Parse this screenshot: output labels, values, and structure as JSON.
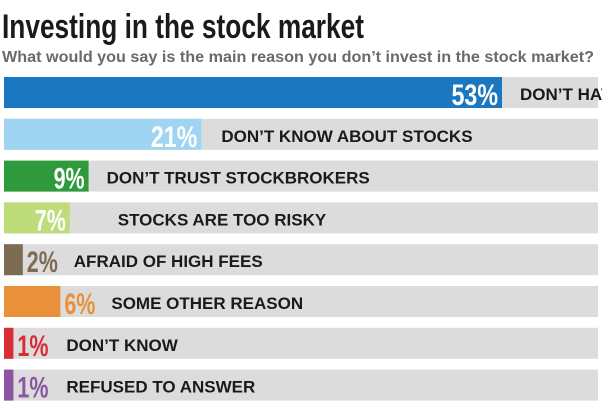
{
  "chart_data": {
    "type": "bar",
    "title": "Investing in the stock market",
    "subtitle": "What would you say is the main reason  you don’t invest in the stock market?",
    "categories": [
      "DON’T HAVE THE MONEY",
      "DON’T KNOW ABOUT STOCKS",
      "DON’T TRUST STOCKBROKERS",
      "STOCKS ARE TOO RISKY",
      "AFRAID OF HIGH FEES",
      "SOME OTHER REASON",
      "DON’T KNOW",
      "REFUSED TO ANSWER"
    ],
    "values": [
      53,
      21,
      9,
      7,
      2,
      6,
      1,
      1
    ],
    "value_labels": [
      "53%",
      "21%",
      "9%",
      "7%",
      "2%",
      "6%",
      "1%",
      "1%"
    ],
    "bar_colors": [
      "#1b77c0",
      "#9fd4f2",
      "#2e9a3c",
      "#bedd7a",
      "#7d6b52",
      "#e8913a",
      "#d92d36",
      "#8c55a3"
    ],
    "label_colors": [
      "#ffffff",
      "#ffffff",
      "#ffffff",
      "#ffffff",
      "#7d6b52",
      "#e8913a",
      "#d92d36",
      "#8c55a3"
    ],
    "track_color": "#dcdcdc",
    "ylim": [
      0,
      100
    ],
    "xlabel": "",
    "ylabel": "",
    "grid": false
  }
}
